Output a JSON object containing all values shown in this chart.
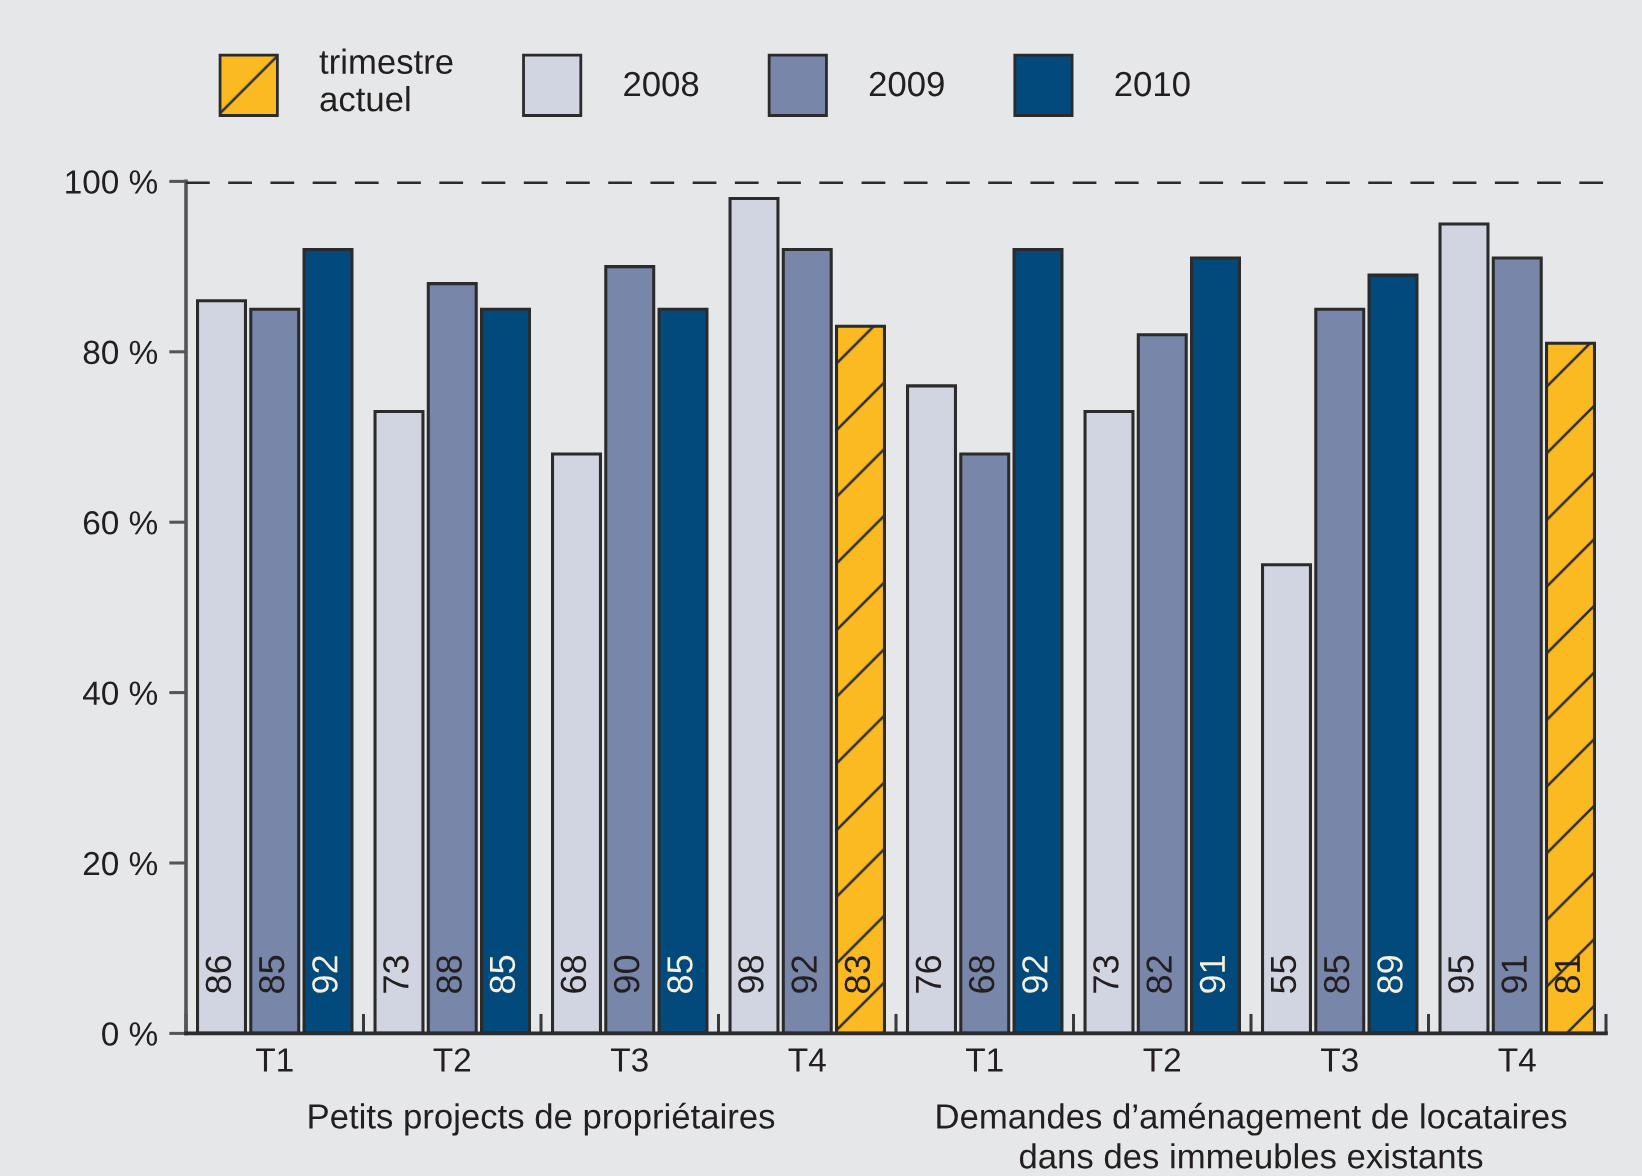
{
  "chart_data": {
    "type": "bar",
    "categories": [
      "T1",
      "T2",
      "T3",
      "T4",
      "T1",
      "T2",
      "T3",
      "T4"
    ],
    "series": [
      {
        "name": "trimestre\nactuel",
        "color": "#fbba21",
        "values": [
          null,
          null,
          null,
          83,
          null,
          null,
          null,
          81
        ]
      },
      {
        "name": "2008",
        "color": "#d1d5e1",
        "values": [
          86,
          73,
          68,
          98,
          76,
          73,
          55,
          95
        ]
      },
      {
        "name": "2009",
        "color": "#7886a9",
        "values": [
          85,
          88,
          90,
          92,
          68,
          82,
          85,
          91
        ]
      },
      {
        "name": "2010",
        "color": "#034a7c",
        "values": [
          92,
          85,
          85,
          null,
          92,
          91,
          89,
          null
        ]
      }
    ],
    "ylim": [
      0,
      100
    ],
    "yticks": [
      {
        "value": 0,
        "label": "0 %"
      },
      {
        "value": 20,
        "label": "20 %"
      },
      {
        "value": 40,
        "label": "40 %"
      },
      {
        "value": 60,
        "label": "60 %"
      },
      {
        "value": 80,
        "label": "80 %"
      },
      {
        "value": 100,
        "label": "100 %"
      }
    ],
    "ref_lines": [
      {
        "axis": "y",
        "value": 100,
        "color": "#2b2b2b",
        "line_style": "dashed"
      }
    ],
    "data_labels": true,
    "legend": "top left",
    "annotations": [
      "Petits projects de propriétaires",
      "Demandes d’aménagement de locataires\ndans des immeubles existants"
    ]
  }
}
